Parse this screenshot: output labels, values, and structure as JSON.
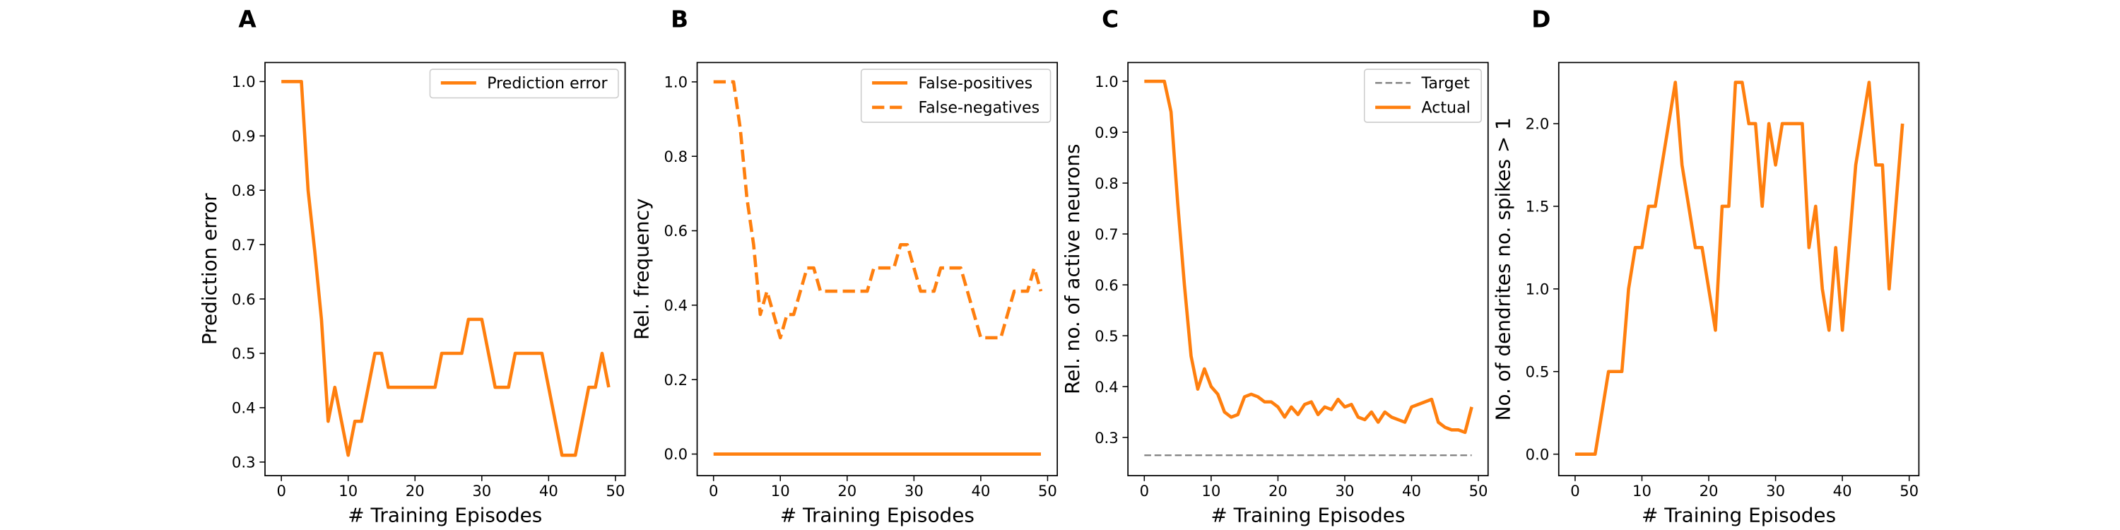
{
  "chart_data": [
    {
      "type": "line",
      "panel_label": "A",
      "xlabel": "# Training Episodes",
      "ylabel": "Prediction error",
      "x": [
        0,
        1,
        2,
        3,
        4,
        5,
        6,
        7,
        8,
        9,
        10,
        11,
        12,
        13,
        14,
        15,
        16,
        17,
        18,
        19,
        20,
        21,
        22,
        23,
        24,
        25,
        26,
        27,
        28,
        29,
        30,
        31,
        32,
        33,
        34,
        35,
        36,
        37,
        38,
        39,
        40,
        41,
        42,
        43,
        44,
        45,
        46,
        47,
        48,
        49
      ],
      "xlim": [
        -2.45,
        51.45
      ],
      "xticks": [
        0,
        10,
        20,
        30,
        40,
        50
      ],
      "ylim": [
        0.275,
        1.035
      ],
      "yticks": [
        0.3,
        0.4,
        0.5,
        0.6,
        0.7,
        0.8,
        0.9,
        {
          "value": 1.0,
          "label": "1.0"
        }
      ],
      "legend": "upper right",
      "series": [
        {
          "name": "Prediction error",
          "color": "#ff7f0e",
          "linestyle": "solid",
          "values": [
            1.0,
            1.0,
            1.0,
            1.0,
            0.8,
            0.6875,
            0.5625,
            0.375,
            0.4375,
            0.375,
            0.3125,
            0.375,
            0.375,
            0.4375,
            0.5,
            0.5,
            0.4375,
            0.4375,
            0.4375,
            0.4375,
            0.4375,
            0.4375,
            0.4375,
            0.4375,
            0.5,
            0.5,
            0.5,
            0.5,
            0.5625,
            0.5625,
            0.5625,
            0.5,
            0.4375,
            0.4375,
            0.4375,
            0.5,
            0.5,
            0.5,
            0.5,
            0.5,
            0.4375,
            0.375,
            0.3125,
            0.3125,
            0.3125,
            0.375,
            0.4375,
            0.4375,
            0.5,
            0.4375
          ]
        }
      ]
    },
    {
      "type": "line",
      "panel_label": "B",
      "xlabel": "# Training Episodes",
      "ylabel": "Rel. frequency",
      "x": [
        0,
        1,
        2,
        3,
        4,
        5,
        6,
        7,
        8,
        9,
        10,
        11,
        12,
        13,
        14,
        15,
        16,
        17,
        18,
        19,
        20,
        21,
        22,
        23,
        24,
        25,
        26,
        27,
        28,
        29,
        30,
        31,
        32,
        33,
        34,
        35,
        36,
        37,
        38,
        39,
        40,
        41,
        42,
        43,
        44,
        45,
        46,
        47,
        48,
        49
      ],
      "xlim": [
        -2.45,
        51.45
      ],
      "xticks": [
        0,
        10,
        20,
        30,
        40,
        50
      ],
      "ylim": [
        -0.058,
        1.052
      ],
      "yticks": [
        {
          "value": 0.0,
          "label": "0.0"
        },
        0.2,
        0.4,
        0.6,
        0.8,
        {
          "value": 1.0,
          "label": "1.0"
        }
      ],
      "legend": "upper right",
      "series": [
        {
          "name": "False-positives",
          "color": "#ff7f0e",
          "linestyle": "solid",
          "values": [
            0,
            0,
            0,
            0,
            0,
            0,
            0,
            0,
            0,
            0,
            0,
            0,
            0,
            0,
            0,
            0,
            0,
            0,
            0,
            0,
            0,
            0,
            0,
            0,
            0,
            0,
            0,
            0,
            0,
            0,
            0,
            0,
            0,
            0,
            0,
            0,
            0,
            0,
            0,
            0,
            0,
            0,
            0,
            0,
            0,
            0,
            0,
            0,
            0,
            0
          ]
        },
        {
          "name": "False-negatives",
          "color": "#ff7f0e",
          "linestyle": "dashed",
          "values": [
            1.0,
            1.0,
            1.0,
            1.0,
            0.875,
            0.6875,
            0.5625,
            0.375,
            0.4375,
            0.375,
            0.3125,
            0.375,
            0.375,
            0.4375,
            0.5,
            0.5,
            0.4375,
            0.4375,
            0.4375,
            0.4375,
            0.4375,
            0.4375,
            0.4375,
            0.4375,
            0.5,
            0.5,
            0.5,
            0.5,
            0.5625,
            0.5625,
            0.5,
            0.4375,
            0.4375,
            0.4375,
            0.5,
            0.5,
            0.5,
            0.5,
            0.4375,
            0.375,
            0.3125,
            0.3125,
            0.3125,
            0.3125,
            0.375,
            0.4375,
            0.4375,
            0.4375,
            0.5,
            0.4375
          ]
        }
      ]
    },
    {
      "type": "line",
      "panel_label": "C",
      "xlabel": "# Training Episodes",
      "ylabel": "Rel. no. of active neurons",
      "x": [
        0,
        1,
        2,
        3,
        4,
        5,
        6,
        7,
        8,
        9,
        10,
        11,
        12,
        13,
        14,
        15,
        16,
        17,
        18,
        19,
        20,
        21,
        22,
        23,
        24,
        25,
        26,
        27,
        28,
        29,
        30,
        31,
        32,
        33,
        34,
        35,
        36,
        37,
        38,
        39,
        40,
        41,
        42,
        43,
        44,
        45,
        46,
        47,
        48,
        49
      ],
      "xlim": [
        -2.45,
        51.45
      ],
      "xticks": [
        0,
        10,
        20,
        30,
        40,
        50
      ],
      "ylim": [
        0.225,
        1.037
      ],
      "yticks": [
        0.3,
        0.4,
        0.5,
        0.6,
        0.7,
        0.8,
        0.9,
        {
          "value": 1.0,
          "label": "1.0"
        }
      ],
      "legend": "upper right",
      "series": [
        {
          "name": "Target",
          "color": "#7f7f7f",
          "linestyle": "dashed",
          "values": [
            0.265,
            0.265,
            0.265,
            0.265,
            0.265,
            0.265,
            0.265,
            0.265,
            0.265,
            0.265,
            0.265,
            0.265,
            0.265,
            0.265,
            0.265,
            0.265,
            0.265,
            0.265,
            0.265,
            0.265,
            0.265,
            0.265,
            0.265,
            0.265,
            0.265,
            0.265,
            0.265,
            0.265,
            0.265,
            0.265,
            0.265,
            0.265,
            0.265,
            0.265,
            0.265,
            0.265,
            0.265,
            0.265,
            0.265,
            0.265,
            0.265,
            0.265,
            0.265,
            0.265,
            0.265,
            0.265,
            0.265,
            0.265,
            0.265,
            0.265
          ]
        },
        {
          "name": "Actual",
          "color": "#ff7f0e",
          "linestyle": "solid",
          "values": [
            1.0,
            1.0,
            1.0,
            1.0,
            0.94,
            0.76,
            0.6,
            0.46,
            0.395,
            0.435,
            0.4,
            0.385,
            0.35,
            0.34,
            0.345,
            0.38,
            0.385,
            0.38,
            0.37,
            0.37,
            0.36,
            0.34,
            0.36,
            0.345,
            0.365,
            0.37,
            0.345,
            0.36,
            0.355,
            0.375,
            0.36,
            0.365,
            0.34,
            0.335,
            0.35,
            0.33,
            0.35,
            0.34,
            0.335,
            0.33,
            0.36,
            0.365,
            0.37,
            0.375,
            0.33,
            0.32,
            0.315,
            0.315,
            0.31,
            0.36
          ]
        }
      ]
    },
    {
      "type": "line",
      "panel_label": "D",
      "xlabel": "# Training Episodes",
      "ylabel": "No. of dendrites no. spikes > 1",
      "x": [
        0,
        1,
        2,
        3,
        4,
        5,
        6,
        7,
        8,
        9,
        10,
        11,
        12,
        13,
        14,
        15,
        16,
        17,
        18,
        19,
        20,
        21,
        22,
        23,
        24,
        25,
        26,
        27,
        28,
        29,
        30,
        31,
        32,
        33,
        34,
        35,
        36,
        37,
        38,
        39,
        40,
        41,
        42,
        43,
        44,
        45,
        46,
        47,
        48,
        49
      ],
      "xlim": [
        -2.45,
        51.45
      ],
      "xticks": [
        0,
        10,
        20,
        30,
        40,
        50
      ],
      "ylim": [
        -0.13,
        2.37
      ],
      "yticks": [
        {
          "value": 0.0,
          "label": "0.0"
        },
        0.5,
        {
          "value": 1.0,
          "label": "1.0"
        },
        1.5,
        {
          "value": 2.0,
          "label": "2.0"
        }
      ],
      "series": [
        {
          "color": "#ff7f0e",
          "linestyle": "solid",
          "values": [
            0,
            0,
            0,
            0,
            0.25,
            0.5,
            0.5,
            0.5,
            1.0,
            1.25,
            1.25,
            1.5,
            1.5,
            1.75,
            2.0,
            2.25,
            1.75,
            1.5,
            1.25,
            1.25,
            1.0,
            0.75,
            1.5,
            1.5,
            2.25,
            2.25,
            2.0,
            2.0,
            1.5,
            2.0,
            1.75,
            2.0,
            2.0,
            2.0,
            2.0,
            1.25,
            1.5,
            1.0,
            0.75,
            1.25,
            0.75,
            1.25,
            1.75,
            2.0,
            2.25,
            1.75,
            1.75,
            1.0,
            1.5,
            2.0
          ]
        }
      ]
    }
  ]
}
